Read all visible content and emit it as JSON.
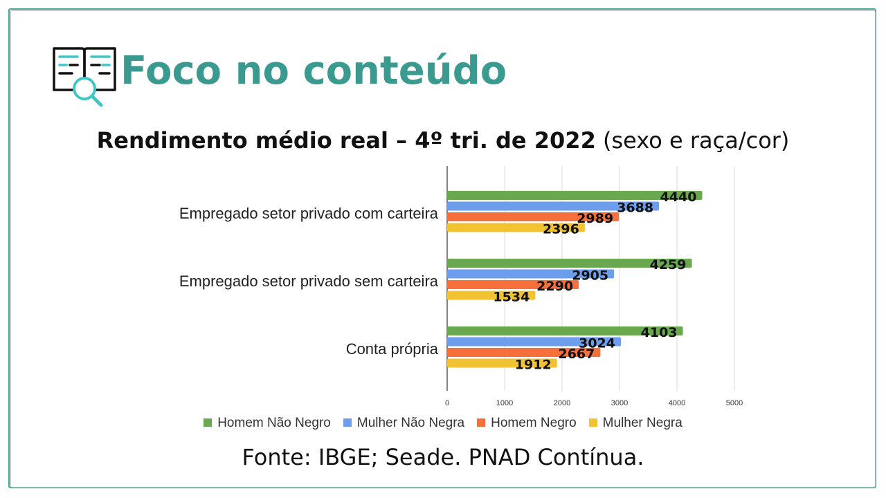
{
  "header": {
    "title": "Foco no conteúdo"
  },
  "subtitle": {
    "bold": "Rendimento médio real – 4º tri. de 2022",
    "normal": " (sexo e raça/cor)"
  },
  "source": "Fonte: IBGE; Seade. PNAD Contínua.",
  "chart_data": {
    "type": "bar",
    "orientation": "horizontal",
    "categories": [
      "Empregado setor privado com carteira",
      "Empregado setor privado sem carteira",
      "Conta própria"
    ],
    "series": [
      {
        "name": "Homem Não Negro",
        "color": "#6aa84f",
        "values": [
          4440,
          4259,
          4103
        ]
      },
      {
        "name": "Mulher Não Negra",
        "color": "#6d9eeb",
        "values": [
          3688,
          2905,
          3024
        ]
      },
      {
        "name": "Homem Negro",
        "color": "#f6703c",
        "values": [
          2989,
          2290,
          2667
        ]
      },
      {
        "name": "Mulher Negra",
        "color": "#f1c232",
        "values": [
          2396,
          1534,
          1912
        ]
      }
    ],
    "xlim": [
      0,
      5000
    ],
    "xticks": [
      0,
      1000,
      2000,
      3000,
      4000,
      5000
    ],
    "grid": true,
    "legend_position": "bottom",
    "data_labels": true
  }
}
